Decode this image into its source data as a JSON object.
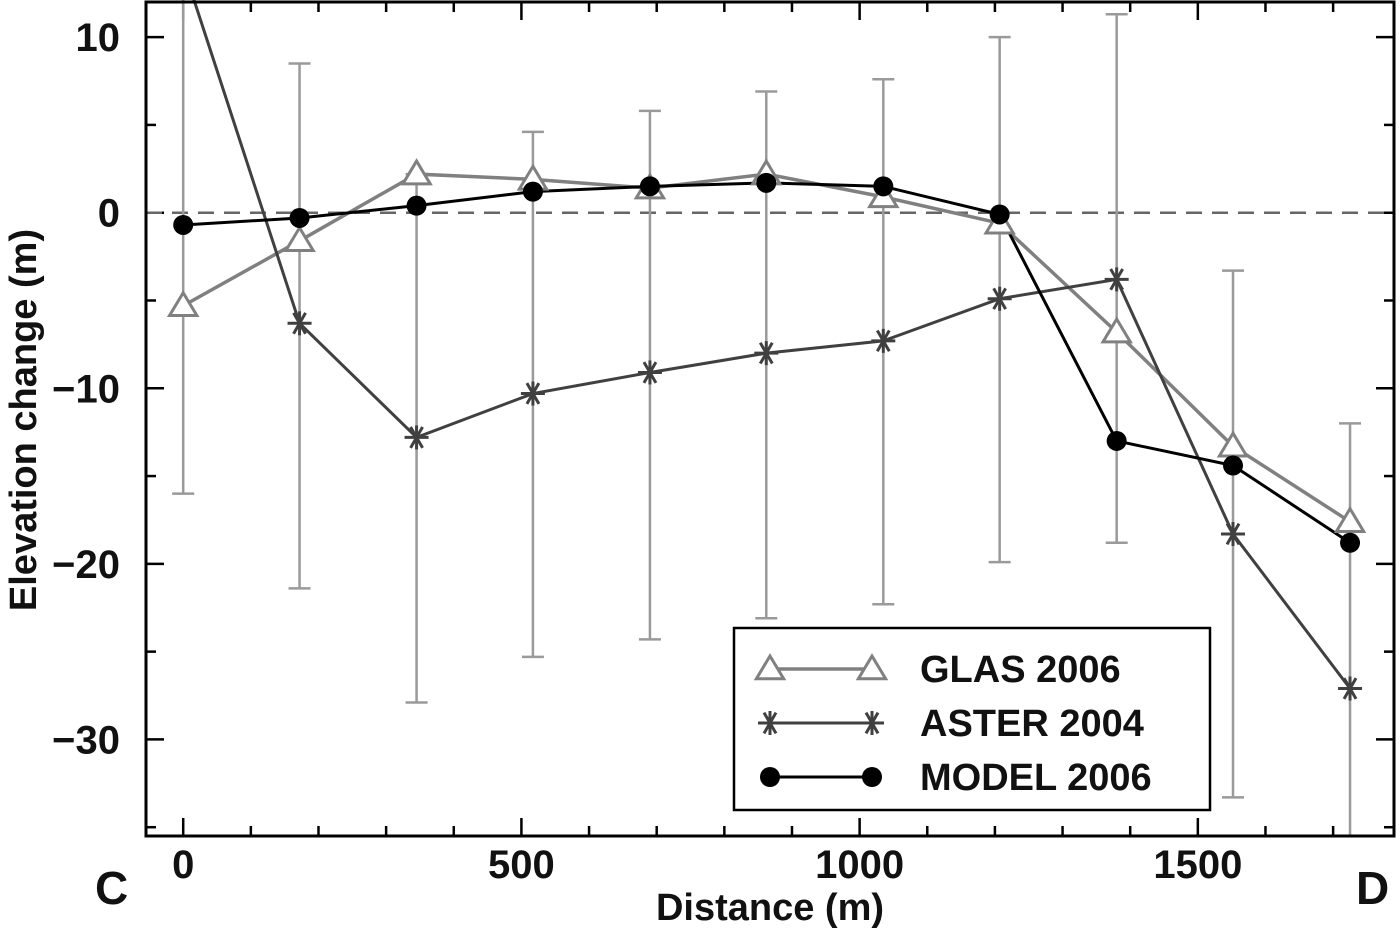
{
  "chart_data": {
    "type": "line",
    "xlabel": "Distance (m)",
    "ylabel": "Elevation change (m)",
    "xlim": [
      -55,
      1790
    ],
    "ylim": [
      -35.5,
      12
    ],
    "x_ticks": [
      0,
      500,
      1000,
      1500
    ],
    "y_ticks": [
      10,
      0,
      -10,
      -20,
      -30
    ],
    "x_tick_labels": [
      "0",
      "500",
      "1000",
      "1500"
    ],
    "y_tick_labels": [
      "10",
      "0",
      "−10",
      "−20",
      "−30"
    ],
    "start_label": "C",
    "end_label": "D",
    "zero_reference_line": true,
    "grid": false,
    "legend_position": "bottom-right",
    "x": [
      0,
      172,
      345,
      517,
      690,
      862,
      1035,
      1207,
      1380,
      1552,
      1725
    ],
    "series": [
      {
        "name": "GLAS 2006",
        "marker": "triangle",
        "color": "#808080",
        "values": [
          -5.3,
          -1.6,
          2.2,
          1.9,
          1.4,
          2.2,
          0.9,
          -0.6,
          -6.8,
          -13.3,
          -17.6
        ],
        "error_low": [
          -16,
          -21.4,
          -27.9,
          -25.3,
          -24.3,
          -23.1,
          -22.3,
          -19.9,
          -18.8,
          -33.3,
          -36
        ],
        "error_high": [
          14,
          8.5,
          2.2,
          4.6,
          5.8,
          6.9,
          7.6,
          10,
          11.3,
          -3.3,
          -12
        ]
      },
      {
        "name": "ASTER 2004",
        "marker": "asterisk",
        "color": "#404040",
        "values": [
          14,
          -6.3,
          -12.8,
          -10.3,
          -9.1,
          -8,
          -7.3,
          -4.9,
          -3.8,
          -18.3,
          -27.1
        ]
      },
      {
        "name": "MODEL 2006",
        "marker": "circle",
        "color": "#000000",
        "values": [
          -0.7,
          -0.3,
          0.4,
          1.2,
          1.5,
          1.7,
          1.5,
          -0.1,
          -13,
          -14.4,
          -18.8
        ]
      }
    ]
  }
}
